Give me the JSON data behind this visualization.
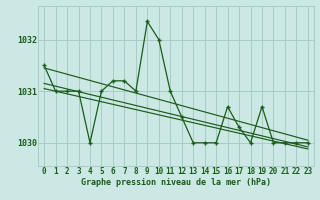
{
  "x": [
    0,
    1,
    2,
    3,
    4,
    5,
    6,
    7,
    8,
    9,
    10,
    11,
    12,
    13,
    14,
    15,
    16,
    17,
    18,
    19,
    20,
    21,
    22,
    23
  ],
  "y_main": [
    1031.5,
    1031.0,
    1031.0,
    1031.0,
    1030.0,
    1031.0,
    1031.2,
    1031.2,
    1031.0,
    1032.35,
    1032.0,
    1031.0,
    1030.5,
    1030.0,
    1030.0,
    1030.0,
    1030.7,
    1030.3,
    1030.0,
    1030.7,
    1030.0,
    1030.0,
    1030.0,
    1030.0
  ],
  "trend1_x": [
    0,
    23
  ],
  "trend1_y": [
    1031.45,
    1030.05
  ],
  "trend2_x": [
    0,
    23
  ],
  "trend2_y": [
    1031.15,
    1029.92
  ],
  "trend3_x": [
    0,
    23
  ],
  "trend3_y": [
    1031.05,
    1029.88
  ],
  "line_color": "#1a5c1a",
  "bg_color": "#cce8e4",
  "grid_color": "#aacbc6",
  "ylabel_values": [
    1030,
    1031,
    1032
  ],
  "xlabel": "Graphe pression niveau de la mer (hPa)",
  "xlim": [
    -0.5,
    23.5
  ],
  "ylim": [
    1029.55,
    1032.65
  ],
  "tick_fontsize": 5.5,
  "xlabel_fontsize": 6.0
}
